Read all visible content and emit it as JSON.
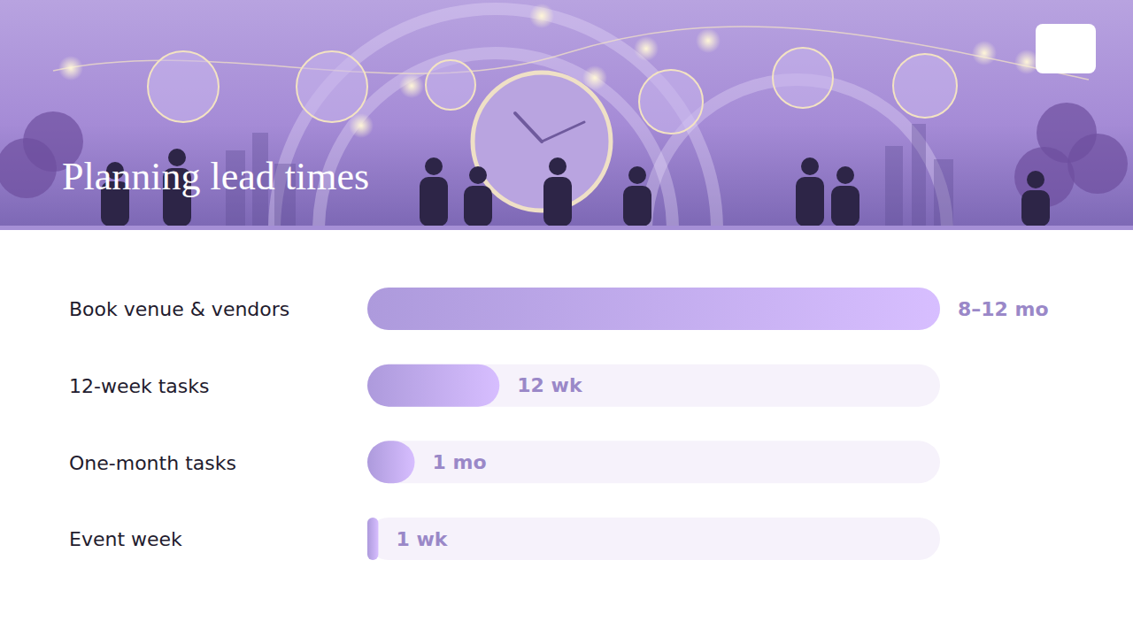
{
  "chart_data": {
    "type": "bar",
    "orientation": "horizontal",
    "title": "Planning lead times",
    "categories": [
      "Book venue & vendors",
      "12-week tasks",
      "One-month tasks",
      "Event week"
    ],
    "values": [
      52,
      12,
      4.3,
      1
    ],
    "value_labels": [
      "8–12 mo",
      "12 wk",
      "1 mo",
      "1 wk"
    ],
    "xlim": [
      0,
      52
    ],
    "color": "#b7a2e8",
    "data_labels": true,
    "tick_labels": false
  }
}
